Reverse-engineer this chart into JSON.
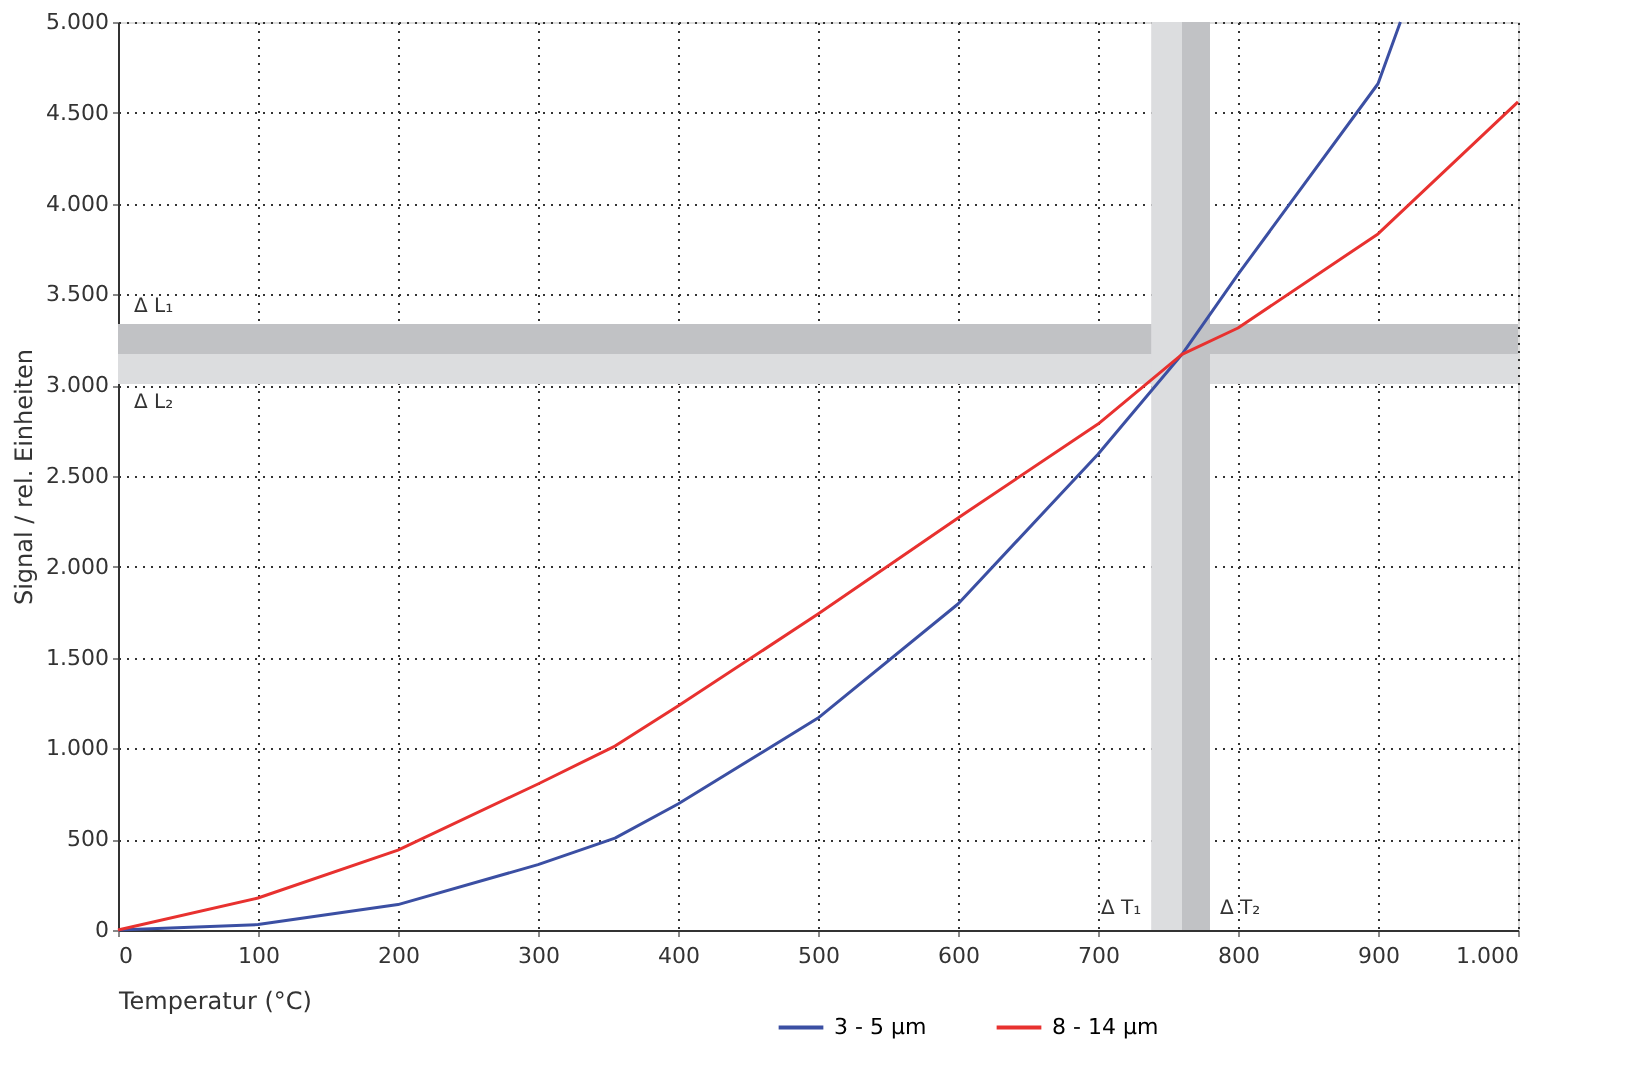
{
  "chart_data": {
    "type": "line",
    "xlabel": "Temperatur (°C)",
    "ylabel": "Signal / rel. Einheiten",
    "xlim": [
      0,
      1000
    ],
    "ylim": [
      0,
      5000
    ],
    "xticks": [
      0,
      100,
      200,
      300,
      400,
      500,
      600,
      700,
      800,
      900,
      {
        "value": 1000,
        "label": "1.000"
      }
    ],
    "yticks": [
      0,
      500,
      {
        "value": 1000,
        "label": "1.000"
      },
      {
        "value": 1500,
        "label": "1.500"
      },
      {
        "value": 2000,
        "label": "2.000"
      },
      {
        "value": 2500,
        "label": "2.500"
      },
      {
        "value": 3000,
        "label": "3.000"
      },
      {
        "value": 3500,
        "label": "3.500"
      },
      {
        "value": 4000,
        "label": "4.000"
      },
      {
        "value": 4500,
        "label": "4.500"
      },
      {
        "value": 5000,
        "label": "5.000"
      }
    ],
    "grid": true,
    "legend": "bottom",
    "line_style": "solid",
    "marker": "none",
    "series": [
      {
        "name": "3 - 5 µm",
        "color": "#3b4fa3",
        "x": [
          0,
          100,
          200,
          300,
          355,
          400,
          500,
          600,
          700,
          760,
          800,
          900,
          916
        ],
        "values": [
          0,
          30,
          140,
          360,
          506,
          694,
          1167,
          1795,
          2620,
          3170,
          3610,
          4660,
          5000
        ]
      },
      {
        "name": "8 - 14 µm",
        "color": "#e8312f",
        "x": [
          0,
          100,
          200,
          300,
          355,
          400,
          500,
          600,
          700,
          760,
          800,
          900,
          1000
        ],
        "values": [
          0,
          176,
          440,
          804,
          1013,
          1233,
          1740,
          2269,
          2786,
          3170,
          3315,
          3833,
          4560
        ]
      }
    ],
    "bands": [
      {
        "axis": "y",
        "from": 3172,
        "to": 3337,
        "label": "Δ L₁",
        "color": "#c1c2c5"
      },
      {
        "axis": "y",
        "from": 3007,
        "to": 3172,
        "label": "Δ L₂",
        "color": "#dcdddf"
      },
      {
        "axis": "x",
        "from": 738,
        "to": 760,
        "label": "Δ T₁",
        "color": "#dcdddf"
      },
      {
        "axis": "x",
        "from": 760,
        "to": 780,
        "label": "Δ T₂",
        "color": "#c1c2c5"
      }
    ]
  }
}
